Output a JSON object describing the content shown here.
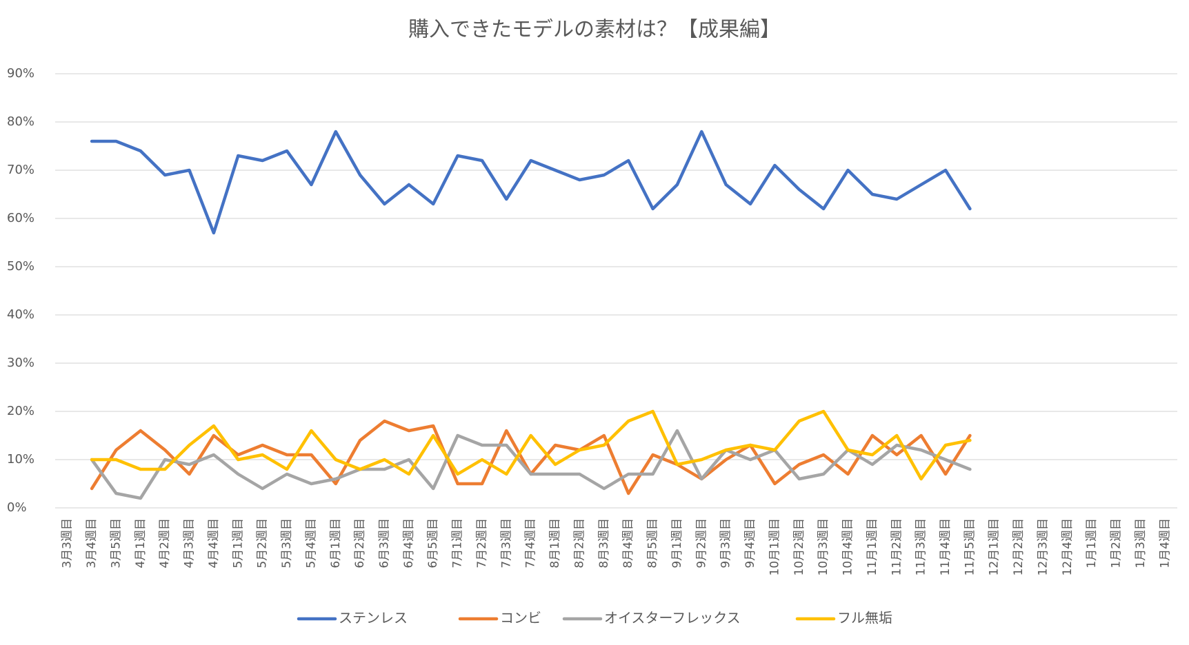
{
  "chart_data": {
    "type": "line",
    "title": "購入できたモデルの素材は？【成果編】",
    "categories": [
      "3月3週目",
      "3月4週目",
      "3月5週目",
      "4月1週目",
      "4月2週目",
      "4月3週目",
      "4月4週目",
      "5月1週目",
      "5月2週目",
      "5月3週目",
      "5月4週目",
      "6月1週目",
      "6月2週目",
      "6月3週目",
      "6月4週目",
      "6月5週目",
      "7月1週目",
      "7月2週目",
      "7月3週目",
      "7月4週目",
      "8月1週目",
      "8月2週目",
      "8月3週目",
      "8月4週目",
      "8月5週目",
      "9月1週目",
      "9月2週目",
      "9月3週目",
      "9月4週目",
      "10月1週目",
      "10月2週目",
      "10月3週目",
      "10月4週目",
      "11月1週目",
      "11月2週目",
      "11月3週目",
      "11月4週目",
      "11月5週目",
      "12月1週目",
      "12月2週目",
      "12月3週目",
      "12月4週目",
      "1月1週目",
      "1月2週目",
      "1月3週目",
      "1月4週目"
    ],
    "series": [
      {
        "name": "ステンレス",
        "color": "#4472c4",
        "values": [
          null,
          76,
          76,
          74,
          69,
          70,
          57,
          73,
          72,
          74,
          67,
          78,
          69,
          63,
          67,
          63,
          73,
          72,
          64,
          72,
          70,
          68,
          69,
          72,
          62,
          67,
          78,
          67,
          63,
          71,
          66,
          62,
          70,
          65,
          64,
          67,
          70,
          62,
          null,
          null,
          null,
          null,
          null,
          null,
          null,
          null
        ]
      },
      {
        "name": "コンビ",
        "color": "#ed7d31",
        "values": [
          null,
          4,
          12,
          16,
          12,
          7,
          15,
          11,
          13,
          11,
          11,
          5,
          14,
          18,
          16,
          17,
          5,
          5,
          16,
          7,
          13,
          12,
          15,
          3,
          11,
          9,
          6,
          10,
          13,
          5,
          9,
          11,
          7,
          15,
          11,
          15,
          7,
          15,
          null,
          null,
          null,
          null,
          null,
          null,
          null,
          null
        ]
      },
      {
        "name": "オイスターフレックス",
        "color": "#a5a5a5",
        "values": [
          null,
          10,
          3,
          2,
          10,
          9,
          11,
          7,
          4,
          7,
          5,
          6,
          8,
          8,
          10,
          4,
          15,
          13,
          13,
          7,
          7,
          7,
          4,
          7,
          7,
          16,
          6,
          12,
          10,
          12,
          6,
          7,
          12,
          9,
          13,
          12,
          10,
          8,
          null,
          null,
          null,
          null,
          null,
          null,
          null,
          null
        ]
      },
      {
        "name": "フル無垢",
        "color": "#ffc000",
        "values": [
          null,
          10,
          10,
          8,
          8,
          13,
          17,
          10,
          11,
          8,
          16,
          10,
          8,
          10,
          7,
          15,
          7,
          10,
          7,
          15,
          9,
          12,
          13,
          18,
          20,
          9,
          10,
          12,
          13,
          12,
          18,
          20,
          12,
          11,
          15,
          6,
          13,
          14,
          null,
          null,
          null,
          null,
          null,
          null,
          null,
          null
        ]
      }
    ],
    "ylim": [
      0,
      90
    ],
    "yticks": [
      {
        "value": 0,
        "label": "0%"
      },
      {
        "value": 10,
        "label": "10%"
      },
      {
        "value": 20,
        "label": "20%"
      },
      {
        "value": 30,
        "label": "30%"
      },
      {
        "value": 40,
        "label": "40%"
      },
      {
        "value": 50,
        "label": "50%"
      },
      {
        "value": 60,
        "label": "60%"
      },
      {
        "value": 70,
        "label": "70%"
      },
      {
        "value": 80,
        "label": "80%"
      },
      {
        "value": 90,
        "label": "90%"
      }
    ],
    "grid": true,
    "legend": "bottom"
  }
}
